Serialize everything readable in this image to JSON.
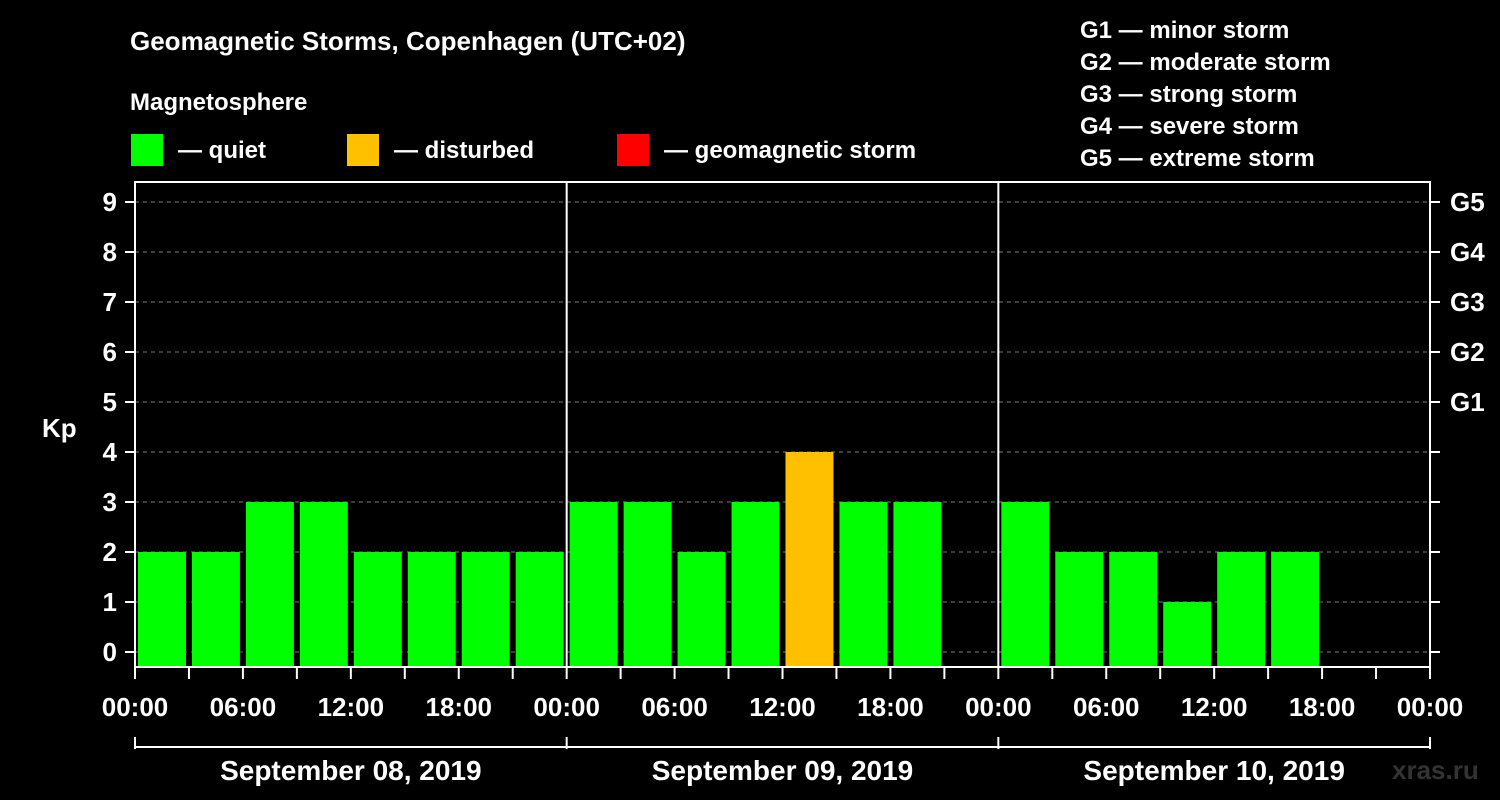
{
  "title": "Geomagnetic Storms, Copenhagen (UTC+02)",
  "legend": {
    "heading": "Magnetosphere",
    "items": [
      {
        "label": "— quiet",
        "color": "#00ff00"
      },
      {
        "label": "— disturbed",
        "color": "#ffc000"
      },
      {
        "label": "— geomagnetic storm",
        "color": "#ff0000"
      }
    ]
  },
  "storm_scale": [
    "G1 — minor storm",
    "G2 — moderate storm",
    "G3 — strong storm",
    "G4 — severe storm",
    "G5 — extreme storm"
  ],
  "watermark": "xras.ru",
  "chart_data": {
    "type": "bar",
    "ylabel": "Kp",
    "ylim": [
      0,
      9
    ],
    "yticks": [
      "0",
      "1",
      "2",
      "3",
      "4",
      "5",
      "6",
      "7",
      "8",
      "9"
    ],
    "right_axis": [
      {
        "kp": 5,
        "label": "G1"
      },
      {
        "kp": 6,
        "label": "G2"
      },
      {
        "kp": 7,
        "label": "G3"
      },
      {
        "kp": 8,
        "label": "G4"
      },
      {
        "kp": 9,
        "label": "G5"
      }
    ],
    "xtick_labels": [
      "00:00",
      "06:00",
      "12:00",
      "18:00",
      "00:00",
      "06:00",
      "12:00",
      "18:00",
      "00:00",
      "06:00",
      "12:00",
      "18:00",
      "00:00"
    ],
    "days": [
      "September 08, 2019",
      "September 09, 2019",
      "September 10, 2019"
    ],
    "interval_hours": 3,
    "grid": true,
    "values": [
      2,
      2,
      3,
      3,
      2,
      2,
      2,
      2,
      3,
      3,
      2,
      3,
      4,
      3,
      3,
      null,
      3,
      2,
      2,
      1,
      2,
      2,
      null,
      null
    ],
    "colors": [
      "#00ff00",
      "#00ff00",
      "#00ff00",
      "#00ff00",
      "#00ff00",
      "#00ff00",
      "#00ff00",
      "#00ff00",
      "#00ff00",
      "#00ff00",
      "#00ff00",
      "#00ff00",
      "#ffc000",
      "#00ff00",
      "#00ff00",
      null,
      "#00ff00",
      "#00ff00",
      "#00ff00",
      "#00ff00",
      "#00ff00",
      "#00ff00",
      null,
      null
    ]
  }
}
